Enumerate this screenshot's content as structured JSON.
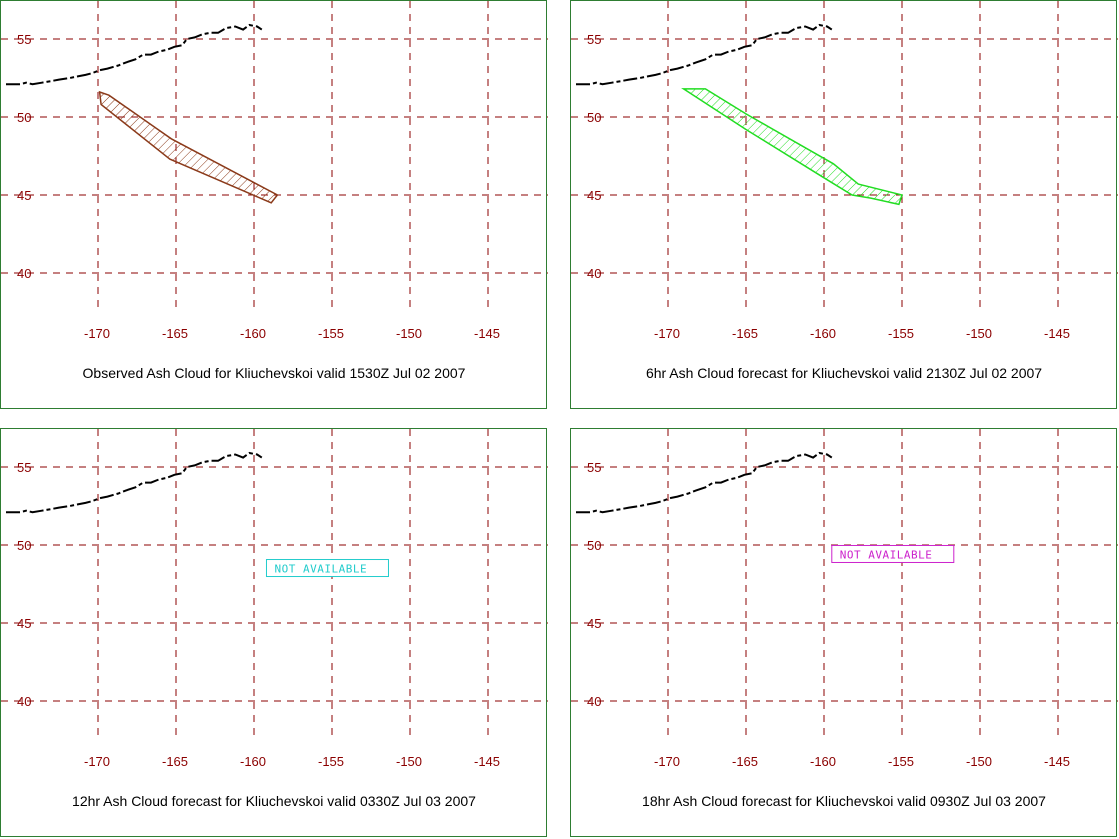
{
  "panels": [
    {
      "caption": "Observed Ash Cloud for Kliuchevskoi valid 1530Z Jul 02 2007",
      "cloud_color": "#8b3a1a",
      "cloud_polygon": [
        [
          -169.9,
          51.6
        ],
        [
          -169.3,
          51.4
        ],
        [
          -165.3,
          48.6
        ],
        [
          -158.5,
          45.0
        ],
        [
          -158.9,
          44.5
        ],
        [
          -165.4,
          47.3
        ],
        [
          -169.8,
          50.8
        ]
      ],
      "not_available": null
    },
    {
      "caption": "6hr Ash Cloud forecast for Kliuchevskoi valid 2130Z Jul 02 2007",
      "cloud_color": "#22dd22",
      "cloud_polygon": [
        [
          -169.0,
          51.8
        ],
        [
          -167.6,
          51.8
        ],
        [
          -165.0,
          50.2
        ],
        [
          -159.4,
          47.0
        ],
        [
          -157.8,
          45.7
        ],
        [
          -155.0,
          45.0
        ],
        [
          -155.2,
          44.4
        ],
        [
          -157.0,
          44.8
        ],
        [
          -158.2,
          45.0
        ],
        [
          -160.0,
          46.1
        ],
        [
          -165.0,
          49.2
        ]
      ],
      "not_available": null
    },
    {
      "caption": "12hr Ash Cloud forecast for Kliuchevskoi valid 0330Z Jul 03 2007",
      "cloud_color": null,
      "cloud_polygon": null,
      "not_available": {
        "text": "NOT AVAILABLE",
        "color": "#22cccc",
        "lon": -159.2,
        "lat": 48.3
      }
    },
    {
      "caption": "18hr Ash Cloud forecast for Kliuchevskoi valid 0930Z Jul 03 2007",
      "cloud_color": null,
      "cloud_polygon": null,
      "not_available": {
        "text": "NOT AVAILABLE",
        "color": "#cc22cc",
        "lon": -159.5,
        "lat": 49.2
      }
    }
  ],
  "map": {
    "lat_ticks": [
      55,
      50,
      45,
      40
    ],
    "lon_ticks": [
      -170,
      -165,
      -160,
      -155,
      -150,
      -145
    ],
    "lat_labels": [
      "55",
      "50",
      "45",
      "40"
    ],
    "lon_labels": [
      "-170",
      "-165",
      "-160",
      "-155",
      "-150",
      "-145"
    ],
    "grid_color": "#8b0000",
    "label_color": "#8b0000",
    "border_color": "#2e7d32",
    "coastline": [
      [
        [
          -175.9,
          52.1
        ],
        [
          -175.0,
          52.1
        ],
        [
          -174.6,
          52.2
        ],
        [
          -174.2,
          52.1
        ],
        [
          -173.6,
          52.2
        ],
        [
          -173.0,
          52.3
        ],
        [
          -172.5,
          52.4
        ],
        [
          -171.8,
          52.5
        ],
        [
          -171.3,
          52.6
        ],
        [
          -170.8,
          52.7
        ],
        [
          -170.4,
          52.8
        ],
        [
          -169.9,
          53.0
        ],
        [
          -169.4,
          53.1
        ],
        [
          -168.7,
          53.3
        ],
        [
          -168.2,
          53.5
        ],
        [
          -167.6,
          53.7
        ],
        [
          -167.1,
          54.0
        ],
        [
          -166.6,
          54.0
        ],
        [
          -166.1,
          54.2
        ],
        [
          -165.6,
          54.3
        ],
        [
          -165.1,
          54.5
        ],
        [
          -164.6,
          54.6
        ],
        [
          -164.3,
          55.0
        ],
        [
          -163.8,
          55.1
        ],
        [
          -163.3,
          55.3
        ],
        [
          -162.8,
          55.4
        ],
        [
          -162.3,
          55.4
        ],
        [
          -161.8,
          55.7
        ],
        [
          -161.2,
          55.8
        ],
        [
          -160.7,
          55.6
        ],
        [
          -160.3,
          55.9
        ],
        [
          -159.8,
          55.8
        ],
        [
          -159.5,
          55.6
        ]
      ]
    ]
  }
}
